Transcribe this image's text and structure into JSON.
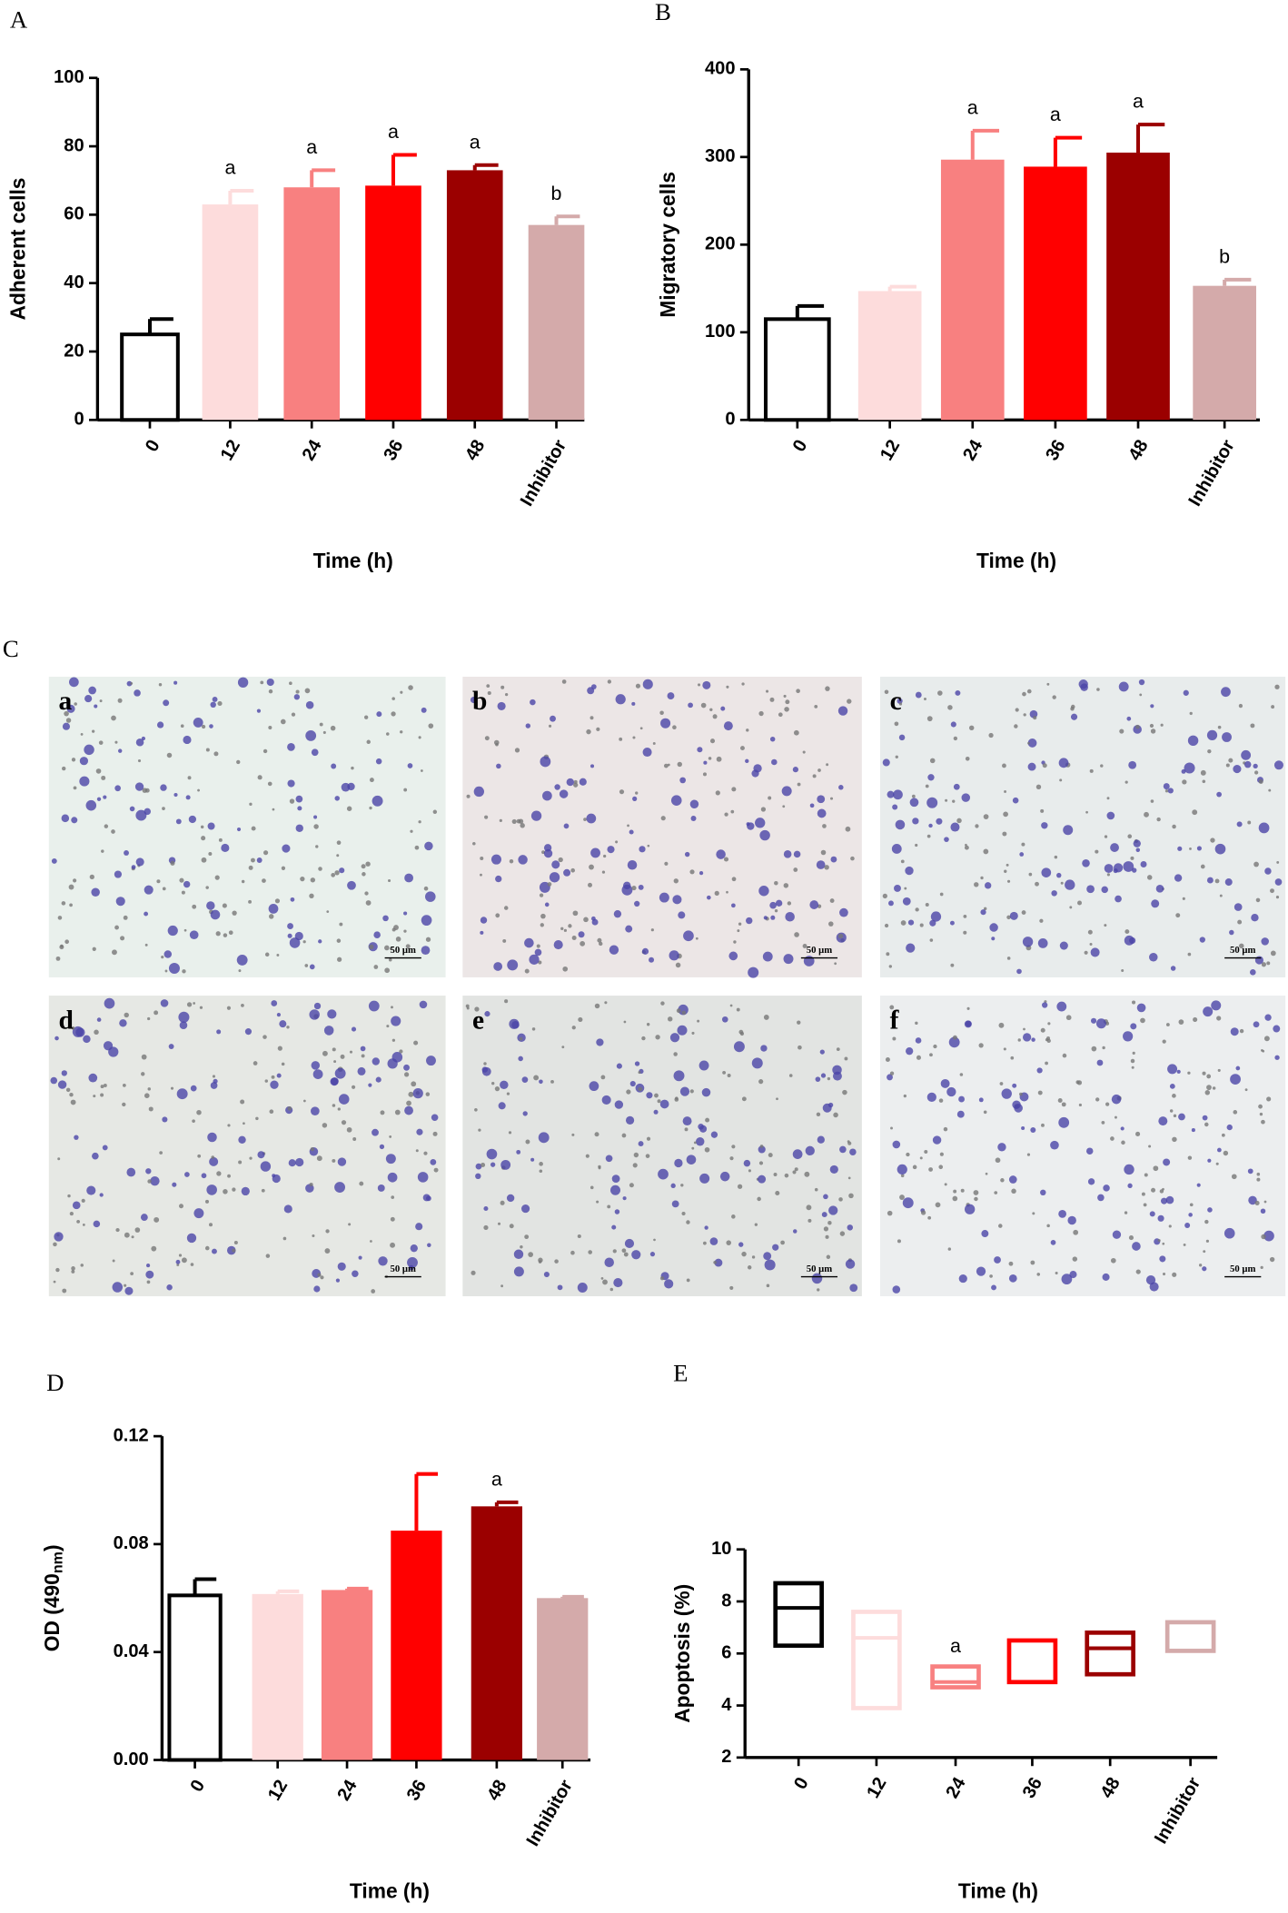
{
  "panel_labels": [
    "A",
    "B",
    "C",
    "D",
    "E"
  ],
  "micrographs": {
    "labels": [
      "a",
      "b",
      "c",
      "d",
      "e",
      "f"
    ],
    "scale_bar": "50 μm"
  },
  "chart_data": [
    {
      "type": "bar",
      "y_label": "Adherent cells",
      "x_label": "Time (h)",
      "categories": [
        "0",
        "12",
        "24",
        "36",
        "48",
        "Inhibitor"
      ],
      "values": [
        25,
        63,
        68,
        68.5,
        73,
        57
      ],
      "errors": [
        4.5,
        4,
        5,
        9,
        1.5,
        2.5
      ],
      "letters": [
        null,
        "a",
        "a",
        "a",
        "a",
        "b"
      ],
      "colors": [
        "#ffffff",
        "#fddcdc",
        "#f88080",
        "#ff0000",
        "#9b0000",
        "#d4aaaa"
      ],
      "ylim": [
        0,
        100
      ],
      "yticks": [
        0,
        20,
        40,
        60,
        80,
        100
      ]
    },
    {
      "type": "bar",
      "y_label": "Migratory cells",
      "x_label": "Time (h)",
      "categories": [
        "0",
        "12",
        "24",
        "36",
        "48",
        "Inhibitor"
      ],
      "values": [
        115,
        147,
        297,
        289,
        305,
        153
      ],
      "errors": [
        15,
        5,
        33,
        33,
        32,
        7
      ],
      "letters": [
        null,
        null,
        "a",
        "a",
        "a",
        "b"
      ],
      "colors": [
        "#ffffff",
        "#fddcdc",
        "#f88080",
        "#ff0000",
        "#9b0000",
        "#d4aaaa"
      ],
      "ylim": [
        0,
        400
      ],
      "yticks": [
        0,
        100,
        200,
        300,
        400
      ]
    },
    {
      "type": "bar",
      "y_label": "OD (490",
      "y_label_sub": "nm",
      "y_label_end": ")",
      "x_label": "Time (h)",
      "categories": [
        "0",
        "12",
        "24",
        "36",
        "48",
        "Inhibitor"
      ],
      "values": [
        0.061,
        0.0615,
        0.063,
        0.085,
        0.094,
        0.06
      ],
      "errors": [
        0.006,
        0.001,
        0.0005,
        0.021,
        0.0015,
        0.0005
      ],
      "letters": [
        null,
        null,
        null,
        null,
        "a",
        null
      ],
      "colors": [
        "#ffffff",
        "#fddcdc",
        "#f88080",
        "#ff0000",
        "#9b0000",
        "#d4aaaa"
      ],
      "ylim": [
        0,
        0.12
      ],
      "yticks": [
        {
          "value": 0,
          "label": "0.00"
        },
        0.04,
        0.08,
        0.12
      ]
    },
    {
      "type": "floating_bar",
      "y_label": "Apoptosis (%)",
      "x_label": "Time (h)",
      "categories": [
        "0",
        "12",
        "24",
        "36",
        "48",
        "Inhibitor"
      ],
      "values_low": [
        6.3,
        3.9,
        4.7,
        4.9,
        5.2,
        6.1
      ],
      "values_mid": [
        7.75,
        6.6,
        4.9,
        6.5,
        6.2,
        6.1
      ],
      "values_high": [
        8.7,
        7.6,
        5.5,
        6.5,
        6.8,
        7.2
      ],
      "letters": [
        null,
        null,
        "a",
        null,
        null,
        null
      ],
      "colors": [
        "#000000",
        "#fddcdc",
        "#f88080",
        "#ff0000",
        "#9b0000",
        "#d4aaaa"
      ],
      "ylim": [
        2,
        10
      ],
      "yticks": [
        2,
        4,
        6,
        8,
        10
      ]
    }
  ]
}
